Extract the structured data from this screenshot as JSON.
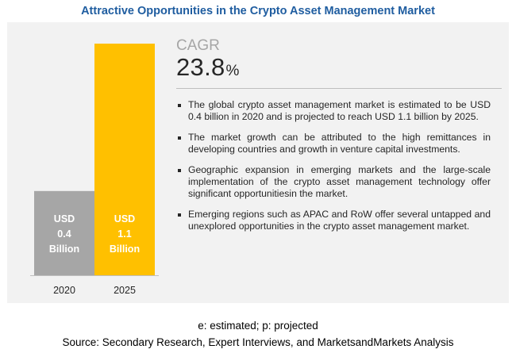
{
  "title": "Attractive Opportunities in the Crypto Asset Management Market",
  "cagr": {
    "label": "CAGR",
    "value": "23.8",
    "unit": "%"
  },
  "bullets": [
    "The global crypto asset management market is estimated to be USD 0.4 billion in 2020 and is projected to reach USD 1.1 billion by 2025.",
    "The market growth can be attributed to the high remittances in developing countries and growth in venture capital investments.",
    "Geographic expansion in emerging markets and the large-scale implementation of the crypto asset management technology offer significant opportunitiesin the market.",
    "Emerging regions such as APAC and RoW offer several untapped and unexplored opportunities in the crypto asset management market."
  ],
  "footnote": "e: estimated; p: projected",
  "source": "Source: Secondary Research, Expert Interviews, and MarketsandMarkets Analysis",
  "chart_data": {
    "type": "bar",
    "categories": [
      "2020",
      "2025"
    ],
    "values": [
      0.4,
      1.1
    ],
    "bar_labels": [
      [
        "USD",
        "0.4",
        "Billion"
      ],
      [
        "USD",
        "1.1",
        "Billion"
      ]
    ],
    "colors": [
      "#a6a6a6",
      "#ffc000"
    ],
    "ylim": [
      0,
      1.1
    ],
    "grid": false
  }
}
